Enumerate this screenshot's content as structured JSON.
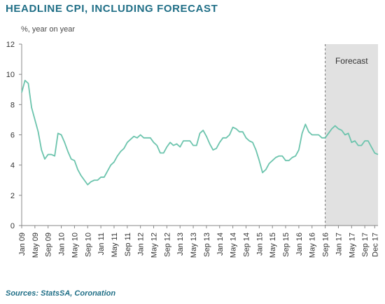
{
  "title": "HEADLINE CPI, INCLUDING FORECAST",
  "source": "Sources: StatsSA, Coronation",
  "colors": {
    "line": "#6cc4ad",
    "title": "#1f6e86",
    "forecast_shade": "#e1e1e1",
    "axis": "#888888"
  },
  "chart_data": {
    "type": "line",
    "title": "HEADLINE CPI, INCLUDING FORECAST",
    "ylabel": "%, year on year",
    "xlabel": "",
    "ylim": [
      0,
      12
    ],
    "yticks": [
      0,
      2,
      4,
      6,
      8,
      10,
      12
    ],
    "grid": false,
    "x_start": "Jan 09",
    "xticks": [
      "Jan 09",
      "May 09",
      "Sep 09",
      "Jan 10",
      "May 10",
      "Sep 10",
      "Jan 11",
      "May 11",
      "Sep 11",
      "Jan 12",
      "May 12",
      "Sep 12",
      "Jan 13",
      "May 13",
      "Sep 13",
      "Jan 14",
      "May 14",
      "Sep 14",
      "Jan 15",
      "May 15",
      "Sep 15",
      "Jan 16",
      "May 16",
      "Sep 16",
      "Jan 17",
      "May 17",
      "Sep 17",
      "Dec 17"
    ],
    "forecast_label": "Forecast",
    "forecast_start": "Sep 16",
    "series": [
      {
        "values": [
          8.8,
          9.6,
          9.4,
          7.8,
          7.0,
          6.2,
          5.0,
          4.4,
          4.7,
          4.7,
          4.6,
          6.1,
          6.0,
          5.5,
          4.9,
          4.4,
          4.3,
          3.7,
          3.3,
          3.0,
          2.7,
          2.9,
          3.0,
          3.0,
          3.2,
          3.2,
          3.6,
          4.0,
          4.2,
          4.6,
          4.9,
          5.1,
          5.5,
          5.7,
          5.9,
          5.8,
          6.0,
          5.8,
          5.8,
          5.8,
          5.5,
          5.3,
          4.8,
          4.8,
          5.2,
          5.5,
          5.3,
          5.4,
          5.2,
          5.6,
          5.6,
          5.6,
          5.3,
          5.3,
          6.1,
          6.3,
          5.9,
          5.4,
          5.0,
          5.1,
          5.5,
          5.8,
          5.8,
          6.0,
          6.5,
          6.4,
          6.2,
          6.2,
          5.8,
          5.6,
          5.5,
          5.0,
          4.3,
          3.5,
          3.7,
          4.1,
          4.3,
          4.5,
          4.6,
          4.6,
          4.3,
          4.3,
          4.5,
          4.6,
          5.0,
          6.1,
          6.7,
          6.2,
          6.0,
          6.0,
          6.0,
          5.8,
          5.8,
          6.1,
          6.4,
          6.6,
          6.4,
          6.3,
          6.0,
          6.1,
          5.5,
          5.6,
          5.3,
          5.3,
          5.6,
          5.6,
          5.2,
          4.8,
          4.7
        ]
      }
    ]
  }
}
